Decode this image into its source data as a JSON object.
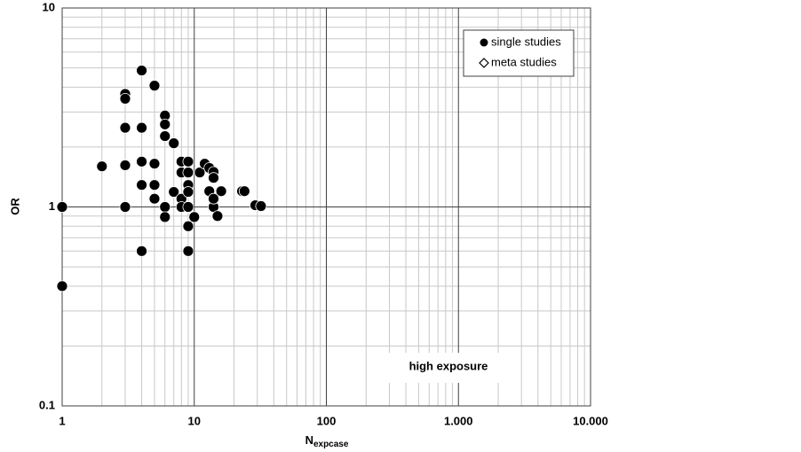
{
  "chart_data": {
    "type": "scatter",
    "log_x": true,
    "log_y": true,
    "grid": true,
    "minor_grid": true,
    "xlabel": "N",
    "xlabel_subscript": "expcase",
    "ylabel": "OR",
    "xlim": [
      1,
      10000
    ],
    "ylim": [
      0.1,
      10
    ],
    "xticks": [
      1,
      10,
      100,
      {
        "value": 1000,
        "label": "1.000"
      },
      {
        "value": 10000,
        "label": "10.000"
      }
    ],
    "yticks": [
      0.1,
      1,
      10
    ],
    "legend": "top-right",
    "annotation": "high exposure",
    "series": [
      {
        "name": "single studies",
        "color": "#000000",
        "marker": "circle",
        "x": [
          1,
          1,
          2,
          3,
          3,
          3,
          3,
          3,
          4,
          4,
          4,
          4,
          4,
          5,
          5,
          5,
          5,
          6,
          6,
          6,
          6,
          6,
          7,
          7,
          8,
          8,
          8,
          8,
          9,
          9,
          9,
          9,
          9,
          9,
          9,
          10,
          11,
          12,
          13,
          13,
          14,
          14,
          14,
          14,
          15,
          16,
          23,
          24,
          29,
          32
        ],
        "values": [
          1.0,
          0.4,
          1.6,
          3.7,
          3.5,
          2.5,
          1.62,
          1.0,
          4.85,
          2.5,
          1.69,
          1.29,
          0.6,
          4.07,
          1.65,
          1.29,
          1.1,
          2.88,
          2.6,
          2.27,
          1.0,
          0.89,
          2.09,
          1.19,
          1.69,
          1.49,
          1.1,
          1.0,
          1.69,
          1.49,
          1.29,
          1.19,
          1.0,
          0.8,
          0.6,
          0.89,
          1.49,
          1.65,
          1.57,
          1.2,
          1.5,
          1.4,
          1.0,
          1.1,
          0.9,
          1.2,
          1.2,
          1.2,
          1.02,
          1.01
        ]
      },
      {
        "name": "meta studies",
        "color": "#000000",
        "marker": "diamond",
        "x": [],
        "values": []
      }
    ]
  }
}
